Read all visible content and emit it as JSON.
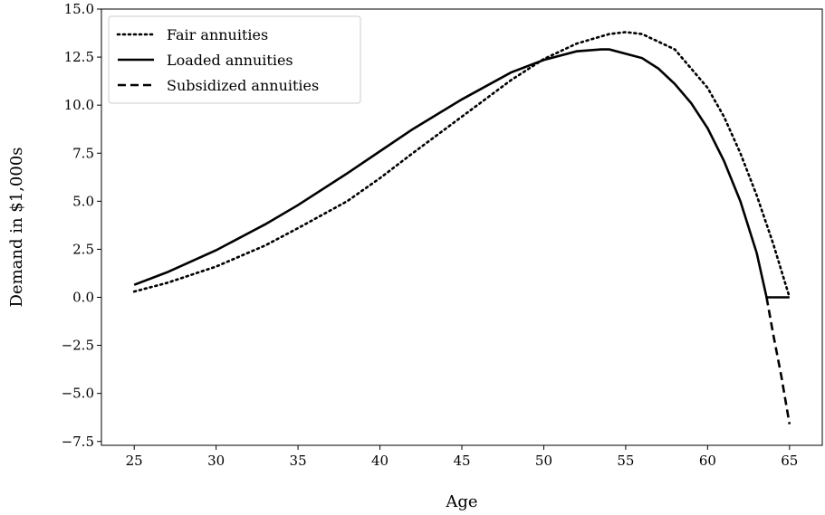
{
  "chart_data": {
    "type": "line",
    "xlabel": "Age",
    "ylabel": "Demand in $1,000s",
    "xlim": [
      23,
      67
    ],
    "ylim": [
      -7.7,
      15.0
    ],
    "xticks": [
      25,
      30,
      35,
      40,
      45,
      50,
      55,
      60,
      65
    ],
    "yticks": [
      -7.5,
      -5.0,
      -2.5,
      0.0,
      2.5,
      5.0,
      7.5,
      10.0,
      12.5,
      15.0
    ],
    "ytick_labels": [
      "−7.5",
      "−5.0",
      "−2.5",
      "0.0",
      "2.5",
      "5.0",
      "7.5",
      "10.0",
      "12.5",
      "15.0"
    ],
    "grid": false,
    "legend_position": "top-left",
    "series": [
      {
        "name": "Fair annuities",
        "style": "dotted",
        "color": "#000000",
        "x": [
          25,
          27,
          30,
          33,
          35,
          38,
          40,
          42,
          45,
          48,
          50,
          52,
          54,
          55,
          56,
          58,
          60,
          61,
          62,
          63,
          64,
          65
        ],
        "y": [
          0.3,
          0.75,
          1.6,
          2.7,
          3.6,
          5.0,
          6.2,
          7.5,
          9.4,
          11.3,
          12.4,
          13.2,
          13.7,
          13.8,
          13.7,
          12.9,
          10.9,
          9.4,
          7.5,
          5.3,
          2.8,
          0.0
        ]
      },
      {
        "name": "Loaded annuities",
        "style": "solid",
        "color": "#000000",
        "x": [
          25,
          27,
          30,
          33,
          35,
          38,
          40,
          42,
          45,
          48,
          50,
          52,
          53.5,
          54,
          56,
          57,
          58,
          59,
          60,
          61,
          62,
          63,
          63.6,
          64,
          65
        ],
        "y": [
          0.65,
          1.3,
          2.45,
          3.8,
          4.8,
          6.45,
          7.6,
          8.75,
          10.3,
          11.7,
          12.35,
          12.8,
          12.9,
          12.9,
          12.45,
          11.9,
          11.1,
          10.1,
          8.8,
          7.1,
          5.0,
          2.3,
          0.0,
          0.0,
          0.0
        ]
      },
      {
        "name": "Subsidized annuities",
        "style": "dashed",
        "color": "#000000",
        "x": [
          63.6,
          64,
          64.5,
          65
        ],
        "y": [
          0.0,
          -1.9,
          -4.1,
          -6.6
        ]
      }
    ]
  }
}
